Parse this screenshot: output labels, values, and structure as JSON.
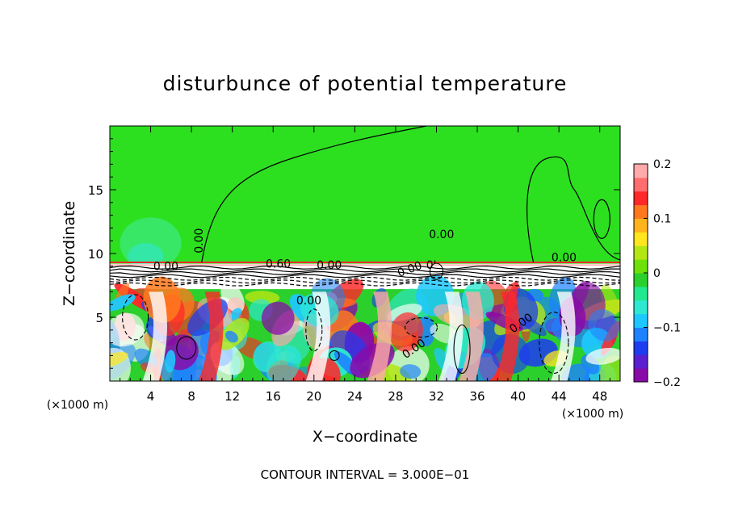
{
  "chart_data": {
    "type": "heatmap",
    "title": "disturbunce of potential temperature",
    "xlabel": "X−coordinate",
    "ylabel": "Z−coordinate",
    "x_unit_left": "(×1000 m)",
    "x_unit_right": "(×1000 m)",
    "footer": "CONTOUR INTERVAL = 3.000E−01",
    "xlim": [
      0,
      50
    ],
    "ylim": [
      0,
      20
    ],
    "x_ticks": [
      4,
      8,
      12,
      16,
      20,
      24,
      28,
      32,
      36,
      40,
      44,
      48
    ],
    "y_ticks": [
      5,
      10,
      15
    ],
    "colorbar": {
      "range": [
        -0.2,
        0.2
      ],
      "tick_values": [
        -0.2,
        -0.1,
        0,
        0.1,
        0.2
      ],
      "tick_labels": [
        "−0.2",
        "−0.1",
        "0",
        "0.1",
        "0.2"
      ],
      "colors": [
        "#8a0aa8",
        "#5a1fd0",
        "#1e3cf0",
        "#1e82ff",
        "#1ec8ff",
        "#2ee8d2",
        "#22e890",
        "#2cd02c",
        "#6ee00a",
        "#b4e614",
        "#ffe61e",
        "#ffb41e",
        "#ff781e",
        "#ff2828",
        "#ff6e6e",
        "#ffaaaa"
      ]
    },
    "contour_labels": [
      "0.00",
      "0.00",
      "0.60",
      "0.00",
      "0.00",
      "0.00",
      "0.00",
      "0.00",
      "0.00",
      "0.00",
      "0'"
    ]
  }
}
